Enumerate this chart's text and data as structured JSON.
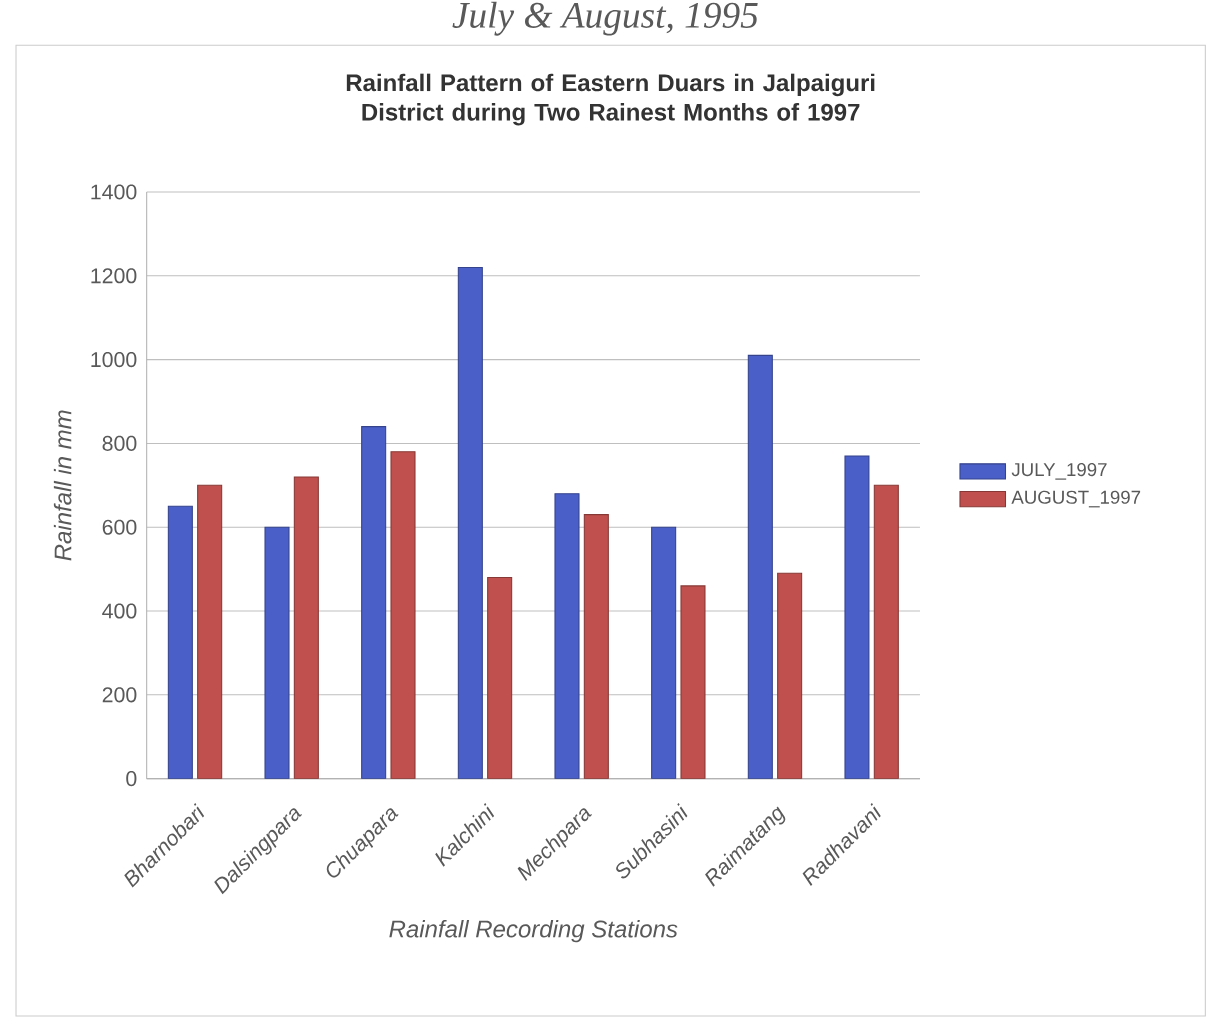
{
  "chart_data": {
    "type": "bar",
    "title": "Rainfall Pattern of Eastern Duars in Jalpaiguri District during Two Rainest Months of 1997",
    "annotations": [
      "July & August, 1995"
    ],
    "xlabel": "Rainfall Recording Stations",
    "ylabel": "Rainfall in mm",
    "categories": [
      "Bharnobari",
      "Dalsingpara",
      "Chuapara",
      "Kalchini",
      "Mechpara",
      "Subhasini",
      "Raimatang",
      "Radhavani"
    ],
    "series": [
      {
        "name": "JULY_1997",
        "color": "#4a5fc8",
        "values": [
          650,
          600,
          840,
          1220,
          680,
          600,
          1010,
          770
        ]
      },
      {
        "name": "AUGUST_1997",
        "color": "#c0504d",
        "values": [
          700,
          720,
          780,
          480,
          630,
          460,
          490,
          700
        ]
      }
    ],
    "ylim": [
      0,
      1400
    ],
    "yticks": [
      0,
      200,
      400,
      600,
      800,
      1000,
      1200,
      1400
    ],
    "grid": "y",
    "legend": "right"
  }
}
